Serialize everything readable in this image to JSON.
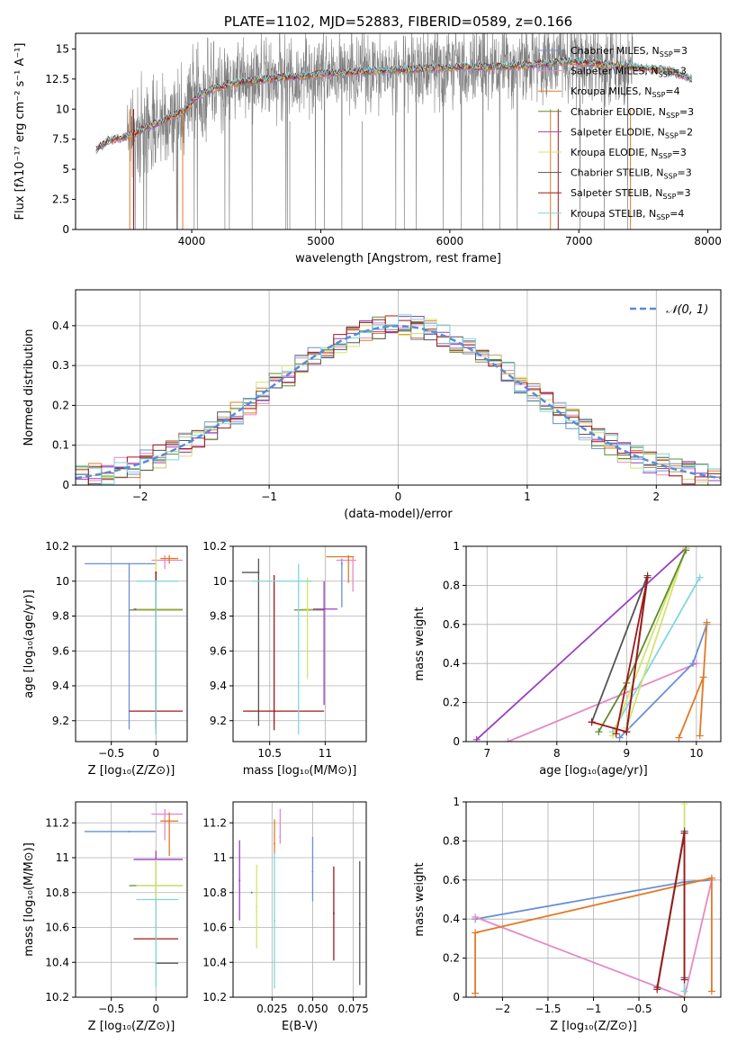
{
  "colors": {
    "chabrier_miles": "#6a8fd6",
    "salpeter_miles": "#e58ac4",
    "kroupa_miles": "#e07b27",
    "chabrier_elodie": "#5f8c2e",
    "salpeter_elodie": "#9b3fbf",
    "kroupa_elodie": "#d4e36e",
    "chabrier_stelib": "#555555",
    "salpeter_stelib": "#a01818",
    "kroupa_stelib": "#7fd6df",
    "data": "#808080",
    "normal": "#5a8ad8"
  },
  "chart_data": [
    {
      "id": "spectrum",
      "type": "line",
      "title": "PLATE=1102, MJD=52883, FIBERID=0589, z=0.166",
      "xlabel": "wavelength [Angstrom, rest frame]",
      "ylabel": "Flux [fλ10⁻¹⁷ erg cm⁻² s⁻¹ A⁻¹]",
      "xlim": [
        3100,
        8100
      ],
      "ylim": [
        0,
        16.3
      ],
      "xticks": [
        4000,
        5000,
        6000,
        7000,
        8000
      ],
      "yticks": [
        0.0,
        2.5,
        5.0,
        7.5,
        10.0,
        12.5,
        15.0
      ],
      "grid": false,
      "legend_position": "right",
      "legend": [
        {
          "label": "Chabrier MILES, N",
          "sub": "SSP",
          "tail": "=3"
        },
        {
          "label": "Salpeter MILES, N",
          "sub": "SSP",
          "tail": "=3"
        },
        {
          "label": "Kroupa MILES, N",
          "sub": "SSP",
          "tail": "=4"
        },
        {
          "label": "Chabrier ELODIE, N",
          "sub": "SSP",
          "tail": "=3"
        },
        {
          "label": "Salpeter ELODIE, N",
          "sub": "SSP",
          "tail": "=2"
        },
        {
          "label": "Kroupa ELODIE, N",
          "sub": "SSP",
          "tail": "=3"
        },
        {
          "label": "Chabrier STELIB, N",
          "sub": "SSP",
          "tail": "=3"
        },
        {
          "label": "Salpeter STELIB, N",
          "sub": "SSP",
          "tail": "=3"
        },
        {
          "label": "Kroupa STELIB, N",
          "sub": "SSP",
          "tail": "=4"
        }
      ],
      "model_continuum": {
        "x": [
          3260,
          3350,
          3450,
          3550,
          3650,
          3750,
          3850,
          3950,
          4050,
          4150,
          4300,
          4500,
          4700,
          4900,
          5100,
          5300,
          5500,
          5700,
          5900,
          6100,
          6300,
          6500,
          6700,
          6900,
          7100,
          7300,
          7500,
          7700,
          7880
        ],
        "y": [
          6.6,
          7.4,
          7.6,
          7.9,
          8.5,
          8.9,
          9.4,
          9.9,
          11.1,
          11.6,
          12.1,
          12.4,
          12.6,
          12.8,
          13.0,
          13.1,
          13.2,
          13.3,
          13.4,
          13.5,
          13.5,
          13.6,
          13.7,
          14.0,
          13.8,
          13.6,
          13.4,
          13.2,
          12.5
        ]
      },
      "data_range": [
        3500,
        7420
      ]
    },
    {
      "id": "residuals",
      "type": "bar",
      "xlabel": "(data-model)/error",
      "ylabel": "Normed distribution",
      "xlim": [
        -2.5,
        2.5
      ],
      "ylim": [
        0,
        0.49
      ],
      "xticks": [
        -2,
        -1,
        0,
        1,
        2
      ],
      "yticks": [
        0.0,
        0.1,
        0.2,
        0.3,
        0.4
      ],
      "grid": true,
      "legend_position": "top-right",
      "legend": [
        {
          "label": "𝒩(0, 1)"
        }
      ],
      "bin_width": 0.1
    },
    {
      "id": "age_vs_Z",
      "type": "scatter",
      "xlabel": "Z [log₁₀(Z/Z⊙)]",
      "ylabel": "age  [log₁₀(age/yr)]",
      "xlim": [
        -0.9,
        0.35
      ],
      "ylim": [
        9.08,
        10.2
      ],
      "xticks": [
        -0.5,
        0.0
      ],
      "yticks": [
        9.2,
        9.4,
        9.6,
        9.8,
        10.0,
        10.2
      ],
      "grid": true,
      "points": [
        {
          "model": "chabrier_miles",
          "x": -0.3,
          "xerr": [
            0.5,
            0.3
          ],
          "y": 10.1,
          "yerr": [
            0.95,
            0.0
          ]
        },
        {
          "model": "salpeter_miles",
          "x": 0.1,
          "xerr": [
            0.15,
            0.2
          ],
          "y": 10.12,
          "yerr": [
            0.05,
            0.03
          ]
        },
        {
          "model": "kroupa_miles",
          "x": 0.15,
          "xerr": [
            0.1,
            0.1
          ],
          "y": 10.13,
          "yerr": [
            0.03,
            0.02
          ]
        },
        {
          "model": "chabrier_elodie",
          "x": 0.0,
          "xerr": [
            0.3,
            0.3
          ],
          "y": 9.835,
          "yerr": [
            0.7,
            0.02
          ]
        },
        {
          "model": "salpeter_elodie",
          "x": 0.0,
          "xerr": [
            0.25,
            0.3
          ],
          "y": 9.84,
          "yerr": [
            0.05,
            0.02
          ]
        },
        {
          "model": "kroupa_elodie",
          "x": 0.0,
          "xerr": [
            0.22,
            0.3
          ],
          "y": 9.84,
          "yerr": [
            0.7,
            0.3
          ]
        },
        {
          "model": "chabrier_stelib",
          "x": 0.0,
          "xerr": [
            0.0,
            0.0
          ],
          "y": 10.05,
          "yerr": [
            0.9,
            0.0
          ]
        },
        {
          "model": "salpeter_stelib",
          "x": 0.0,
          "xerr": [
            0.3,
            0.3
          ],
          "y": 9.255,
          "yerr": [
            0.1,
            0.8
          ]
        },
        {
          "model": "kroupa_stelib",
          "x": 0.0,
          "xerr": [
            0.22,
            0.25
          ],
          "y": 10.0,
          "yerr": [
            0.88,
            0.0
          ]
        }
      ]
    },
    {
      "id": "age_vs_mass",
      "type": "scatter",
      "xlabel": "mass [log₁₀(M/M⊙)]",
      "ylabel": "",
      "xlim": [
        10.17,
        11.37
      ],
      "ylim": [
        9.08,
        10.2
      ],
      "xticks": [
        10.5,
        11.0
      ],
      "yticks": [
        9.2,
        9.4,
        9.6,
        9.8,
        10.0,
        10.2
      ],
      "grid": true,
      "points": [
        {
          "model": "chabrier_miles",
          "x": 11.15,
          "xerr": [
            0.0,
            0.0
          ],
          "y": 10.1,
          "yerr": [
            0.25,
            0.03
          ]
        },
        {
          "model": "salpeter_miles",
          "x": 11.25,
          "xerr": [
            0.15,
            0.03
          ],
          "y": 10.12,
          "yerr": [
            0.18,
            0.02
          ]
        },
        {
          "model": "kroupa_miles",
          "x": 11.21,
          "xerr": [
            0.2,
            0.05
          ],
          "y": 10.14,
          "yerr": [
            0.15,
            0.01
          ]
        },
        {
          "model": "chabrier_elodie",
          "x": 10.84,
          "xerr": [
            0.12,
            0.15
          ],
          "y": 9.835,
          "yerr": [
            0.0,
            0.0
          ]
        },
        {
          "model": "salpeter_elodie",
          "x": 10.99,
          "xerr": [
            0.1,
            0.12
          ],
          "y": 9.84,
          "yerr": [
            0.55,
            0.16
          ]
        },
        {
          "model": "kroupa_elodie",
          "x": 10.84,
          "xerr": [
            0.05,
            0.05
          ],
          "y": 9.84,
          "yerr": [
            0.4,
            0.18
          ]
        },
        {
          "model": "chabrier_stelib",
          "x": 10.4,
          "xerr": [
            0.15,
            0.0
          ],
          "y": 10.05,
          "yerr": [
            0.88,
            0.08
          ]
        },
        {
          "model": "salpeter_stelib",
          "x": 10.54,
          "xerr": [
            0.28,
            0.45
          ],
          "y": 9.255,
          "yerr": [
            0.11,
            0.78
          ]
        },
        {
          "model": "kroupa_stelib",
          "x": 10.76,
          "xerr": [
            0.42,
            0.12
          ],
          "y": 10.0,
          "yerr": [
            0.88,
            0.1
          ]
        }
      ]
    },
    {
      "id": "weight_vs_age",
      "type": "line",
      "xlabel": "age  [log₁₀(age/yr)]",
      "ylabel": "mass weight",
      "xlim": [
        6.7,
        10.35
      ],
      "ylim": [
        0,
        1.0
      ],
      "xticks": [
        7,
        8,
        9,
        10
      ],
      "yticks": [
        0.0,
        0.2,
        0.4,
        0.6,
        0.8,
        1.0
      ],
      "grid": true,
      "series": [
        {
          "model": "salpeter_elodie",
          "x": [
            6.85,
            9.85
          ],
          "y": [
            0.01,
            0.99
          ]
        },
        {
          "model": "salpeter_miles",
          "x": [
            7.3,
            10.0
          ],
          "y": [
            0.0,
            0.4
          ]
        },
        {
          "model": "chabrier_miles",
          "x": [
            8.9,
            9.95,
            10.15
          ],
          "y": [
            0.02,
            0.4,
            0.6
          ]
        },
        {
          "model": "kroupa_miles",
          "x": [
            9.75,
            10.1,
            10.05,
            10.15
          ],
          "y": [
            0.02,
            0.33,
            0.03,
            0.61
          ]
        },
        {
          "model": "kroupa_stelib",
          "x": [
            8.8,
            10.05
          ],
          "y": [
            0.05,
            0.84
          ]
        },
        {
          "model": "kroupa_elodie",
          "x": [
            8.8,
            9.85,
            9.0
          ],
          "y": [
            0.03,
            0.99,
            0.07
          ]
        },
        {
          "model": "chabrier_elodie",
          "x": [
            8.6,
            9.0,
            9.85
          ],
          "y": [
            0.05,
            0.3,
            0.98
          ]
        },
        {
          "model": "chabrier_stelib",
          "x": [
            8.5,
            9.3,
            9.0
          ],
          "y": [
            0.1,
            0.85,
            0.05
          ]
        },
        {
          "model": "salpeter_stelib",
          "x": [
            8.5,
            9.0,
            9.3,
            8.85
          ],
          "y": [
            0.1,
            0.05,
            0.84,
            0.04
          ]
        }
      ]
    },
    {
      "id": "mass_vs_Z",
      "type": "scatter",
      "xlabel": "Z [log₁₀(Z/Z⊙)]",
      "ylabel": "mass [log₁₀(M/M⊙)]",
      "xlim": [
        -0.9,
        0.35
      ],
      "ylim": [
        10.2,
        11.32
      ],
      "xticks": [
        -0.5,
        0.0
      ],
      "yticks": [
        10.2,
        10.4,
        10.6,
        10.8,
        11.0,
        11.2
      ],
      "grid": true,
      "points": [
        {
          "model": "chabrier_miles",
          "x": -0.3,
          "xerr": [
            0.5,
            0.3
          ],
          "y": 11.15,
          "yerr": [
            0.0,
            0.0
          ]
        },
        {
          "model": "salpeter_miles",
          "x": 0.1,
          "xerr": [
            0.15,
            0.2
          ],
          "y": 11.25,
          "yerr": [
            0.15,
            0.03
          ]
        },
        {
          "model": "kroupa_miles",
          "x": 0.15,
          "xerr": [
            0.1,
            0.1
          ],
          "y": 11.21,
          "yerr": [
            0.2,
            0.05
          ]
        },
        {
          "model": "chabrier_elodie",
          "x": 0.0,
          "xerr": [
            0.3,
            0.3
          ],
          "y": 10.84,
          "yerr": [
            0.1,
            0.1
          ]
        },
        {
          "model": "salpeter_elodie",
          "x": 0.0,
          "xerr": [
            0.25,
            0.3
          ],
          "y": 10.99,
          "yerr": [
            0.05,
            0.05
          ]
        },
        {
          "model": "kroupa_elodie",
          "x": 0.0,
          "xerr": [
            0.22,
            0.3
          ],
          "y": 10.84,
          "yerr": [
            0.35,
            0.15
          ]
        },
        {
          "model": "chabrier_stelib",
          "x": 0.0,
          "xerr": [
            0.0,
            0.25
          ],
          "y": 10.395,
          "yerr": [
            0.0,
            0.0
          ]
        },
        {
          "model": "salpeter_stelib",
          "x": 0.0,
          "xerr": [
            0.25,
            0.25
          ],
          "y": 10.535,
          "yerr": [
            0.0,
            0.0
          ]
        },
        {
          "model": "kroupa_stelib",
          "x": 0.0,
          "xerr": [
            0.22,
            0.25
          ],
          "y": 10.76,
          "yerr": [
            0.5,
            0.0
          ]
        }
      ]
    },
    {
      "id": "mass_vs_EBV",
      "type": "scatter",
      "xlabel": "E(B-V)",
      "ylabel": "",
      "xlim": [
        0.001,
        0.083
      ],
      "ylim": [
        10.2,
        11.32
      ],
      "xticks": [
        0.025,
        0.05,
        0.075
      ],
      "xticklabels": [
        "0.025",
        "0.050",
        "0.075"
      ],
      "yticks": [
        10.2,
        10.4,
        10.6,
        10.8,
        11.0,
        11.2
      ],
      "grid": true,
      "points": [
        {
          "model": "chabrier_miles",
          "x": 0.05,
          "xerr": [
            0.0,
            0.0
          ],
          "y": 10.92,
          "yerr": [
            0.17,
            0.2
          ]
        },
        {
          "model": "salpeter_miles",
          "x": 0.03,
          "xerr": [
            0.0,
            0.0
          ],
          "y": 11.12,
          "yerr": [
            0.04,
            0.16
          ]
        },
        {
          "model": "kroupa_miles",
          "x": 0.0265,
          "xerr": [
            0.0,
            0.0
          ],
          "y": 11.08,
          "yerr": [
            0.06,
            0.14
          ]
        },
        {
          "model": "chabrier_elodie",
          "x": 0.0125,
          "xerr": [
            0.0,
            0.0
          ],
          "y": 10.8,
          "yerr": [
            0.0,
            0.0
          ]
        },
        {
          "model": "salpeter_elodie",
          "x": 0.005,
          "xerr": [
            0.0,
            0.0
          ],
          "y": 10.87,
          "yerr": [
            0.23,
            0.23
          ]
        },
        {
          "model": "kroupa_elodie",
          "x": 0.0155,
          "xerr": [
            0.0,
            0.0
          ],
          "y": 10.72,
          "yerr": [
            0.24,
            0.24
          ]
        },
        {
          "model": "chabrier_stelib",
          "x": 0.079,
          "xerr": [
            0.0,
            0.0
          ],
          "y": 10.62,
          "yerr": [
            0.35,
            0.36
          ]
        },
        {
          "model": "salpeter_stelib",
          "x": 0.063,
          "xerr": [
            0.0,
            0.0
          ],
          "y": 10.68,
          "yerr": [
            0.27,
            0.27
          ]
        },
        {
          "model": "kroupa_stelib",
          "x": 0.0265,
          "xerr": [
            0.0,
            0.0
          ],
          "y": 10.64,
          "yerr": [
            0.39,
            0.39
          ]
        }
      ]
    },
    {
      "id": "weight_vs_Z",
      "type": "line",
      "xlabel": "Z [log₁₀(Z/Z⊙)]",
      "ylabel": "mass weight",
      "xlim": [
        -2.4,
        0.4
      ],
      "ylim": [
        0,
        1.0
      ],
      "xticks": [
        -2.0,
        -1.5,
        -1.0,
        -0.5,
        0.0
      ],
      "yticks": [
        0.0,
        0.2,
        0.4,
        0.6,
        0.8,
        1.0
      ],
      "grid": true,
      "series": [
        {
          "model": "chabrier_miles",
          "x": [
            -2.3,
            0.0,
            0.3
          ],
          "y": [
            0.4,
            0.59,
            0.6
          ]
        },
        {
          "model": "salpeter_miles",
          "x": [
            -2.3,
            0.0,
            0.3
          ],
          "y": [
            0.41,
            0.0,
            0.6
          ]
        },
        {
          "model": "kroupa_miles",
          "x": [
            -2.3,
            -2.3,
            0.3,
            0.3
          ],
          "y": [
            0.02,
            0.33,
            0.61,
            0.03
          ]
        },
        {
          "model": "kroupa_elodie",
          "x": [
            0.0,
            0.0
          ],
          "y": [
            0.0,
            0.99
          ]
        },
        {
          "model": "kroupa_stelib",
          "x": [
            0.0,
            0.0
          ],
          "y": [
            0.03,
            0.84
          ]
        },
        {
          "model": "chabrier_stelib",
          "x": [
            -0.3,
            0.0,
            0.0
          ],
          "y": [
            0.05,
            0.85,
            0.1
          ]
        },
        {
          "model": "salpeter_stelib",
          "x": [
            -0.3,
            0.0,
            0.0
          ],
          "y": [
            0.04,
            0.84,
            0.09
          ]
        }
      ]
    }
  ]
}
